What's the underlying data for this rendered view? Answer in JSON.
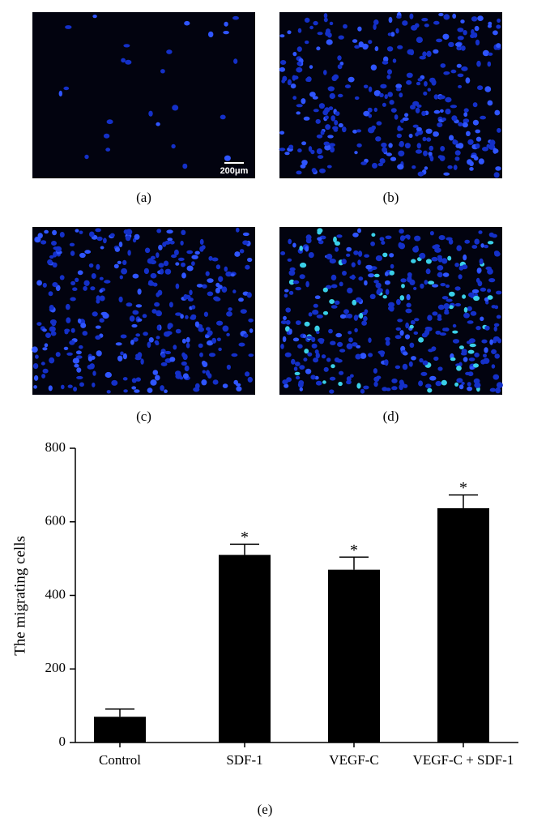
{
  "panels": [
    {
      "label": "(a)",
      "scale_bar": "200μm"
    },
    {
      "label": "(b)"
    },
    {
      "label": "(c)"
    },
    {
      "label": "(d)"
    }
  ],
  "chart_data": {
    "type": "bar",
    "caption": "(e)",
    "y_label": "The migrating cells",
    "categories": [
      "Control",
      "SDF-1",
      "VEGF-C",
      "VEGF-C + SDF-1"
    ],
    "values": [
      70,
      510,
      470,
      637
    ],
    "errors": [
      21,
      29,
      34,
      36
    ],
    "color": "#000000",
    "annotations": [
      {
        "x": "SDF-1",
        "text": "*"
      },
      {
        "x": "VEGF-C",
        "text": "*"
      },
      {
        "x": "VEGF-C + SDF-1",
        "text": "*"
      }
    ],
    "ylim": [
      0,
      800
    ],
    "yticks": [
      0,
      200,
      400,
      600,
      800
    ]
  }
}
